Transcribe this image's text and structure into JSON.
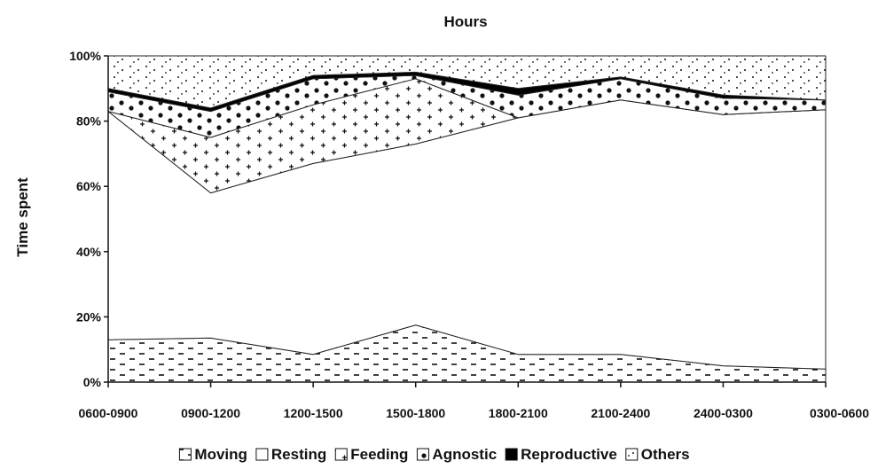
{
  "chart_data": {
    "type": "area",
    "stacked": true,
    "percent": true,
    "title": "Hours",
    "xlabel": "",
    "ylabel": "Time spent",
    "ylim": [
      0,
      100
    ],
    "y_ticks": [
      "0%",
      "20%",
      "40%",
      "60%",
      "80%",
      "100%"
    ],
    "categories": [
      "0600-0900",
      "0900-1200",
      "1200-1500",
      "1500-1800",
      "1800-2100",
      "2100-2400",
      "2400-0300",
      "0300-0600"
    ],
    "series": [
      {
        "name": "Moving",
        "values": [
          13,
          13.5,
          8.5,
          17.5,
          8.5,
          8.5,
          5,
          4
        ]
      },
      {
        "name": "Resting",
        "values": [
          70,
          44.5,
          58.5,
          55.5,
          72.5,
          78,
          77,
          79.5
        ]
      },
      {
        "name": "Feeding",
        "values": [
          0,
          17,
          18,
          20,
          0,
          0,
          0,
          0
        ]
      },
      {
        "name": "Agnostic",
        "values": [
          6,
          8,
          8,
          1,
          7,
          6.5,
          5,
          3
        ]
      },
      {
        "name": "Reproductive",
        "values": [
          1,
          1,
          1,
          1,
          2,
          0.5,
          1,
          0
        ]
      },
      {
        "name": "Others",
        "values": [
          10,
          16,
          6,
          5,
          10,
          6.5,
          12,
          13.5
        ]
      }
    ],
    "legend_position": "bottom",
    "grid": false
  }
}
